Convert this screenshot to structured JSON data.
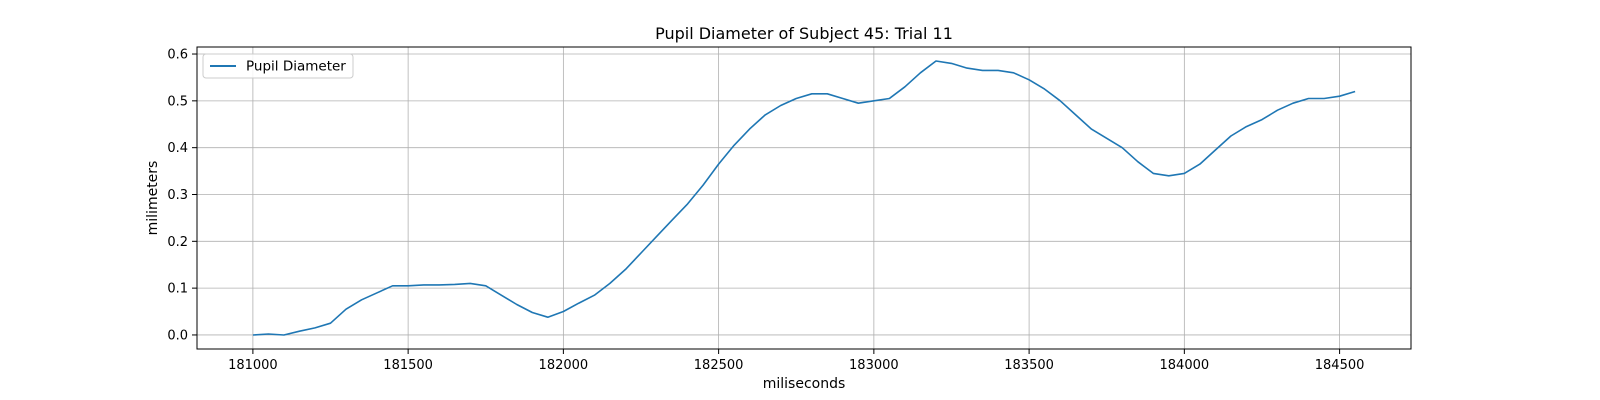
{
  "chart_data": {
    "type": "line",
    "title": "Pupil Diameter of Subject 45: Trial 11",
    "xlabel": "miliseconds",
    "ylabel": "milimeters",
    "xlim": [
      180820,
      184730
    ],
    "ylim": [
      -0.03,
      0.615
    ],
    "xticks": [
      181000,
      181500,
      182000,
      182500,
      183000,
      183500,
      184000,
      184500
    ],
    "yticks": [
      0.0,
      0.1,
      0.2,
      0.3,
      0.4,
      0.5,
      0.6
    ],
    "ytick_labels": [
      "0.0",
      "0.1",
      "0.2",
      "0.3",
      "0.4",
      "0.5",
      "0.6"
    ],
    "grid": true,
    "legend": {
      "placement": "upper-left",
      "entries": [
        "Pupil Diameter"
      ]
    },
    "series": [
      {
        "name": "Pupil Diameter",
        "color": "#1f77b4",
        "x": [
          181000,
          181050,
          181100,
          181150,
          181200,
          181250,
          181300,
          181350,
          181400,
          181450,
          181500,
          181550,
          181600,
          181650,
          181700,
          181750,
          181800,
          181850,
          181900,
          181950,
          182000,
          182050,
          182100,
          182150,
          182200,
          182250,
          182300,
          182350,
          182400,
          182450,
          182500,
          182550,
          182600,
          182650,
          182700,
          182750,
          182800,
          182850,
          182900,
          182950,
          183000,
          183050,
          183100,
          183150,
          183200,
          183250,
          183300,
          183350,
          183400,
          183450,
          183500,
          183550,
          183600,
          183650,
          183700,
          183750,
          183800,
          183850,
          183900,
          183950,
          184000,
          184050,
          184100,
          184150,
          184200,
          184250,
          184300,
          184350,
          184400,
          184450,
          184500,
          184550
        ],
        "y": [
          0.0,
          0.002,
          0.0,
          0.008,
          0.015,
          0.025,
          0.055,
          0.075,
          0.09,
          0.105,
          0.105,
          0.107,
          0.107,
          0.108,
          0.11,
          0.105,
          0.085,
          0.065,
          0.048,
          0.038,
          0.05,
          0.068,
          0.085,
          0.11,
          0.14,
          0.175,
          0.21,
          0.245,
          0.28,
          0.32,
          0.365,
          0.405,
          0.44,
          0.47,
          0.49,
          0.505,
          0.515,
          0.515,
          0.505,
          0.495,
          0.5,
          0.505,
          0.53,
          0.56,
          0.585,
          0.58,
          0.57,
          0.565,
          0.565,
          0.56,
          0.545,
          0.525,
          0.5,
          0.47,
          0.44,
          0.42,
          0.4,
          0.37,
          0.345,
          0.34,
          0.345,
          0.365,
          0.395,
          0.425,
          0.445,
          0.46,
          0.48,
          0.495,
          0.505,
          0.505,
          0.51,
          0.52
        ]
      }
    ]
  }
}
